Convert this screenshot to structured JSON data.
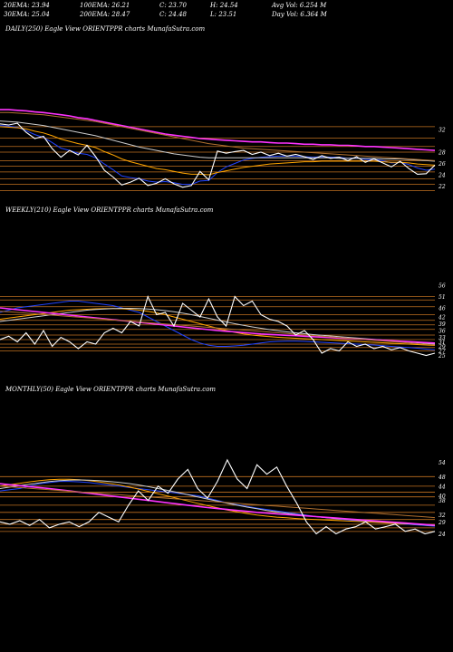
{
  "header": {
    "row1": [
      "20EMA: 23.94",
      "100EMA: 26.21",
      "C: 23.70",
      "H: 24.54",
      "Avg Vol: 6.254  M"
    ],
    "row2": [
      "30EMA: 25.04",
      "200EMA: 28.47",
      "C: 24.48",
      "L: 23.51",
      "Day Vol: 6.364  M"
    ]
  },
  "chart_data": [
    {
      "type": "line",
      "title": "DAILY(250) Eagle  View  ORIENTPPR charts MunafaSutra.com",
      "ylim": [
        20,
        36
      ],
      "y_ticks": [
        32,
        28,
        26,
        24,
        22
      ],
      "y_tick_labels": [
        "32",
        "28",
        "26",
        "24",
        "22"
      ],
      "levels": [
        32.5,
        30.5,
        29,
        28,
        26.5,
        25.5,
        24.5,
        23.3,
        22.3,
        21.2
      ],
      "series": [
        {
          "color": "#ffffff",
          "values": [
            33,
            32.8,
            33.1,
            31.5,
            30.4,
            30.8,
            28.6,
            27.1,
            28.3,
            27.5,
            29.2,
            27.2,
            24.8,
            23.6,
            22.2,
            22.7,
            23.4,
            22.1,
            22.5,
            23.3,
            22.4,
            21.8,
            22.1,
            24.6,
            23.1,
            28.2,
            27.8,
            28.1,
            28.3,
            27.6,
            28,
            27.4,
            27.8,
            27.3,
            27.6,
            27.2,
            26.7,
            27.4,
            26.9,
            27.1,
            26.5,
            27.2,
            26.2,
            26.8,
            26.1,
            25.4,
            26.4,
            25.1,
            24.1,
            24.2,
            25.7
          ]
        },
        {
          "color": "#2244ff",
          "values": [
            32.7,
            32.6,
            32.4,
            31.8,
            31.1,
            30.6,
            29.7,
            28.7,
            28.3,
            27.8,
            27.6,
            27,
            25.9,
            24.9,
            23.8,
            23.5,
            23.3,
            22.9,
            22.7,
            22.8,
            22.6,
            22.3,
            22.3,
            22.9,
            23,
            24.4,
            25.4,
            26,
            26.6,
            26.9,
            27.1,
            27.2,
            27.3,
            27.3,
            27.3,
            27.2,
            27.1,
            27.2,
            27.1,
            27.1,
            26.9,
            27,
            26.7,
            26.7,
            26.5,
            26.1,
            26.2,
            25.8,
            25.2,
            24.8,
            25
          ]
        },
        {
          "color": "#ffa500",
          "values": [
            32.5,
            32.4,
            32.3,
            32.1,
            31.7,
            31.4,
            30.9,
            30.3,
            29.9,
            29.5,
            29.2,
            28.8,
            28.1,
            27.5,
            26.8,
            26.3,
            25.9,
            25.5,
            25.1,
            24.9,
            24.6,
            24.3,
            24.1,
            24.1,
            24,
            24.4,
            24.7,
            25,
            25.3,
            25.5,
            25.7,
            25.9,
            26,
            26.1,
            26.2,
            26.3,
            26.3,
            26.4,
            26.4,
            26.4,
            26.4,
            26.4,
            26.4,
            26.4,
            26.3,
            26.2,
            26.2,
            26.1,
            25.9,
            25.8,
            25.7
          ]
        },
        {
          "color": "#cccccc",
          "values": [
            33.5,
            33.4,
            33.3,
            33.1,
            32.9,
            32.7,
            32.4,
            32.1,
            31.8,
            31.5,
            31.2,
            30.9,
            30.5,
            30.1,
            29.7,
            29.3,
            28.9,
            28.6,
            28.3,
            28,
            27.7,
            27.5,
            27.3,
            27.1,
            27,
            27,
            27,
            27,
            27,
            27,
            27,
            27,
            27,
            27,
            27,
            27,
            27,
            27,
            27,
            26.9,
            26.9,
            26.9,
            26.9,
            26.9,
            26.8,
            26.8,
            26.8,
            26.7,
            26.6,
            26.5,
            26.4
          ]
        },
        {
          "color": "#ff33ff",
          "values": [
            35.5,
            35.5,
            35.4,
            35.3,
            35.1,
            35,
            34.8,
            34.6,
            34.4,
            34.1,
            33.9,
            33.6,
            33.3,
            33,
            32.7,
            32.4,
            32.1,
            31.8,
            31.5,
            31.2,
            31,
            30.8,
            30.6,
            30.4,
            30.3,
            30.2,
            30.1,
            30,
            29.9,
            29.8,
            29.8,
            29.7,
            29.6,
            29.6,
            29.5,
            29.4,
            29.4,
            29.3,
            29.3,
            29.2,
            29.2,
            29.1,
            29,
            29,
            28.9,
            28.8,
            28.7,
            28.6,
            28.5,
            28.4,
            28.3
          ]
        },
        {
          "color": "#b07030",
          "values": [
            35,
            35,
            34.9,
            34.8,
            34.7,
            34.6,
            34.4,
            34.2,
            34,
            33.8,
            33.6,
            33.4,
            33.1,
            32.8,
            32.5,
            32.2,
            31.9,
            31.6,
            31.3,
            31,
            30.7,
            30.4,
            30.1,
            29.8,
            29.5,
            29.3,
            29.1,
            28.9,
            28.7,
            28.6,
            28.5,
            28.4,
            28.3,
            28.2,
            28.1,
            28,
            27.9,
            27.8,
            27.7,
            27.6,
            27.5,
            27.4,
            27.3,
            27.2,
            27.1,
            27,
            26.9,
            26.8,
            26.7,
            26.6,
            26.5
          ]
        }
      ]
    },
    {
      "type": "line",
      "title": "WEEKLY(210) Eagle  View  ORIENTPPR charts MunafaSutra.com",
      "ylim": [
        22,
        62
      ],
      "y_ticks": [
        56,
        51,
        46,
        42,
        39,
        36,
        33,
        31,
        29,
        27,
        25
      ],
      "y_tick_labels": [
        "56",
        "51",
        "46",
        "42",
        "39",
        "36",
        "33",
        "31",
        "29",
        "27",
        "25"
      ],
      "levels": [
        51,
        49.5,
        46.5,
        43,
        40.5,
        38.5,
        36.5,
        34,
        32,
        30,
        28.5,
        27
      ],
      "series": [
        {
          "color": "#ffffff",
          "values": [
            32,
            33.5,
            31,
            35,
            30,
            36,
            29,
            33,
            31,
            28,
            31,
            30,
            35,
            37,
            35,
            40,
            38,
            51,
            43,
            44,
            38,
            48,
            45,
            42,
            50,
            42,
            38,
            51,
            47,
            49,
            43,
            41,
            40,
            38,
            34,
            36,
            32,
            26,
            28,
            27,
            31,
            29,
            30,
            28,
            29,
            27.5,
            28.5,
            27,
            26,
            25,
            26
          ]
        },
        {
          "color": "#2244ff",
          "values": [
            44,
            45,
            46,
            46.5,
            47,
            47.5,
            48,
            48.5,
            49,
            49,
            48.5,
            48,
            47.5,
            47,
            46,
            45,
            44,
            42,
            40,
            38,
            36,
            34,
            32,
            30.5,
            29.5,
            29,
            29,
            29.2,
            29.5,
            30,
            30.5,
            31,
            31.2,
            31.3,
            31.3,
            31.2,
            31,
            30.8,
            30.6,
            30.4,
            30.2,
            30,
            29.8,
            29.6,
            29.3,
            29,
            28.7,
            28.5,
            28.2,
            27.8,
            27.5
          ]
        },
        {
          "color": "#ffa500",
          "values": [
            41,
            41.5,
            42,
            42.5,
            43,
            43.5,
            44,
            44.5,
            45,
            45.2,
            45.4,
            45.6,
            45.7,
            45.7,
            45.6,
            45.4,
            45,
            44.5,
            43.8,
            43,
            42,
            41,
            40,
            39,
            38,
            37,
            36,
            35.2,
            34.5,
            34,
            33.6,
            33.3,
            33,
            32.8,
            32.6,
            32.4,
            32.2,
            32,
            31.8,
            31.6,
            31.4,
            31.2,
            31,
            30.8,
            30.6,
            30.4,
            30.2,
            30,
            29.8,
            29.6,
            29.4
          ]
        },
        {
          "color": "#cccccc",
          "values": [
            40,
            40.5,
            41,
            41.5,
            42,
            42.5,
            43,
            43.5,
            44,
            44.5,
            45,
            45.3,
            45.5,
            45.7,
            45.8,
            45.8,
            45.7,
            45.5,
            45.2,
            44.8,
            44.3,
            43.7,
            43,
            42.2,
            41.4,
            40.6,
            39.8,
            39,
            38.3,
            37.6,
            37,
            36.4,
            35.9,
            35.4,
            35,
            34.6,
            34.2,
            33.9,
            33.6,
            33.3,
            33,
            32.7,
            32.4,
            32.1,
            31.8,
            31.5,
            31.2,
            30.9,
            30.6,
            30.3,
            30
          ]
        },
        {
          "color": "#ff33ff",
          "values": [
            46,
            45.6,
            45.2,
            44.8,
            44.4,
            44,
            43.6,
            43.2,
            42.8,
            42.4,
            42,
            41.6,
            41.2,
            40.8,
            40.4,
            40,
            39.6,
            39.2,
            38.8,
            38.4,
            38,
            37.6,
            37.2,
            36.8,
            36.4,
            36,
            35.7,
            35.4,
            35.1,
            34.8,
            34.5,
            34.3,
            34.1,
            33.9,
            33.7,
            33.5,
            33.3,
            33.1,
            32.9,
            32.7,
            32.5,
            32.3,
            32.1,
            31.9,
            31.7,
            31.5,
            31.3,
            31.1,
            30.9,
            30.7,
            30.5
          ]
        },
        {
          "color": "#b07030",
          "values": [
            44.5,
            44.3,
            44,
            43.7,
            43.4,
            43.1,
            42.8,
            42.5,
            42.2,
            41.9,
            41.6,
            41.3,
            41,
            40.7,
            40.4,
            40.1,
            39.8,
            39.5,
            39.2,
            38.9,
            38.6,
            38.3,
            38,
            37.7,
            37.4,
            37.1,
            36.8,
            36.5,
            36.2,
            35.9,
            35.6,
            35.3,
            35,
            34.7,
            34.4,
            34.1,
            33.8,
            33.5,
            33.2,
            32.9,
            32.6,
            32.3,
            32,
            31.7,
            31.4,
            31.1,
            30.8,
            30.5,
            30.2,
            29.9,
            29.6
          ]
        }
      ]
    },
    {
      "type": "line",
      "title": "MONTHLY(50) Eagle  View  ORIENTPPR charts MunafaSutra.com",
      "ylim": [
        20,
        58
      ],
      "y_ticks": [
        54,
        48,
        44,
        40,
        38,
        32,
        29,
        24
      ],
      "y_tick_labels": [
        "54",
        "48",
        "44",
        "40",
        "38",
        "32",
        "29",
        "24"
      ],
      "levels": [
        48,
        44,
        41.5,
        39.5,
        36,
        33,
        30,
        28,
        26.5,
        25
      ],
      "series": [
        {
          "color": "#ffffff",
          "values": [
            29,
            28,
            29.5,
            27.5,
            30,
            26.5,
            28,
            29,
            27,
            29,
            33,
            31,
            29,
            36,
            42,
            38,
            44,
            41,
            47,
            51,
            43,
            39,
            46,
            55,
            47,
            43,
            53,
            49,
            52,
            44,
            37,
            29,
            24,
            27,
            24,
            26,
            27,
            29,
            26,
            27,
            28,
            25,
            26,
            24,
            25
          ]
        },
        {
          "color": "#2244ff",
          "values": [
            42,
            42.5,
            43,
            44,
            45,
            45.5,
            46,
            46,
            45.8,
            45.5,
            45,
            44.5,
            44,
            43.5,
            43,
            42.5,
            42,
            41.5,
            41,
            40.5,
            40,
            39,
            38,
            37,
            36.2,
            35.5,
            34.8,
            34.2,
            33.6,
            33,
            32.4,
            31.8,
            31.2,
            30.7,
            30.3,
            29.9,
            29.6,
            29.3,
            29,
            28.7,
            28.4,
            28.1,
            27.8,
            27.5,
            27.2
          ]
        },
        {
          "color": "#ffa500",
          "values": [
            44,
            44.6,
            45.2,
            45.8,
            46.3,
            46.7,
            46.9,
            46.9,
            46.7,
            46.3,
            45.8,
            45.2,
            44.5,
            43.7,
            42.8,
            41.8,
            40.8,
            39.8,
            38.8,
            37.8,
            36.8,
            35.8,
            34.9,
            34,
            33.2,
            32.5,
            31.9,
            31.4,
            31,
            30.7,
            30.4,
            30.2,
            30,
            29.8,
            29.6,
            29.4,
            29.2,
            29,
            28.8,
            28.6,
            28.4,
            28.2,
            28,
            27.8,
            27.6
          ]
        },
        {
          "color": "#cccccc",
          "values": [
            43,
            43.6,
            44.2,
            44.8,
            45.4,
            45.9,
            46.3,
            46.5,
            46.6,
            46.5,
            46.3,
            46,
            45.6,
            45.1,
            44.5,
            43.8,
            43,
            42.2,
            41.3,
            40.4,
            39.5,
            38.6,
            37.7,
            36.8,
            36,
            35.2,
            34.5,
            33.8,
            33.2,
            32.6,
            32.1,
            31.6,
            31.2,
            30.8,
            30.4,
            30.1,
            29.8,
            29.5,
            29.2,
            28.9,
            28.6,
            28.3,
            28,
            27.7,
            27.4
          ]
        },
        {
          "color": "#ff33ff",
          "values": [
            45,
            44.6,
            44.2,
            43.8,
            43.4,
            43,
            42.5,
            42,
            41.5,
            41,
            40.5,
            40,
            39.5,
            39,
            38.5,
            38,
            37.5,
            37,
            36.5,
            36,
            35.5,
            35,
            34.6,
            34.2,
            33.8,
            33.4,
            33,
            32.7,
            32.4,
            32.1,
            31.8,
            31.5,
            31.2,
            30.9,
            30.6,
            30.3,
            30,
            29.7,
            29.4,
            29.1,
            28.8,
            28.5,
            28.2,
            27.9,
            27.6
          ]
        },
        {
          "color": "#b07030",
          "values": [
            44,
            43.7,
            43.4,
            43.1,
            42.8,
            42.5,
            42.2,
            41.9,
            41.6,
            41.3,
            41,
            40.7,
            40.4,
            40.1,
            39.8,
            39.5,
            39.2,
            38.9,
            38.6,
            38.3,
            38,
            37.7,
            37.4,
            37.1,
            36.8,
            36.5,
            36.2,
            35.9,
            35.6,
            35.3,
            35,
            34.7,
            34.4,
            34.1,
            33.8,
            33.5,
            33.2,
            32.9,
            32.6,
            32.3,
            32,
            31.7,
            31.4,
            31.1,
            30.8
          ]
        }
      ]
    }
  ]
}
